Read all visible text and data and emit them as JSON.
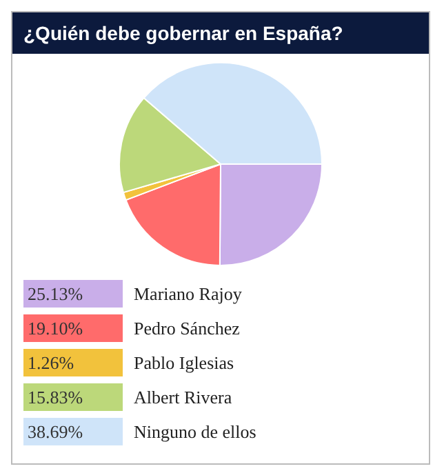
{
  "chart_data": {
    "type": "pie",
    "title": "¿Quién debe gobernar en España?",
    "categories": [
      "Mariano Rajoy",
      "Pedro Sánchez",
      "Pablo Iglesias",
      "Albert Rivera",
      "Ninguno de ellos"
    ],
    "values": [
      25.13,
      19.1,
      1.26,
      15.83,
      38.69
    ],
    "value_labels": [
      "25.13%",
      "19.10%",
      "1.26%",
      "15.83%",
      "38.69%"
    ],
    "colors": [
      "#c9aee9",
      "#ff6b6b",
      "#f2c23c",
      "#bcd87a",
      "#cfe4f9"
    ],
    "legend": "bottom"
  }
}
